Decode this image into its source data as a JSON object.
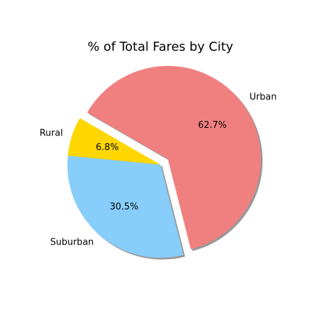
{
  "chart_data": {
    "type": "pie",
    "title": "% of Total Fares by City",
    "slices": [
      {
        "label": "Rural",
        "value": 6.8,
        "pct_label": "6.8%",
        "color": "#ffd700",
        "exploded": false
      },
      {
        "label": "Suburban",
        "value": 30.5,
        "pct_label": "30.5%",
        "color": "#87cefa",
        "exploded": false
      },
      {
        "label": "Urban",
        "value": 62.7,
        "pct_label": "62.7%",
        "color": "#f08080",
        "exploded": true
      }
    ],
    "shadow": true,
    "start_angle_deg": 150,
    "direction": "counterclockwise",
    "legend": "none"
  }
}
